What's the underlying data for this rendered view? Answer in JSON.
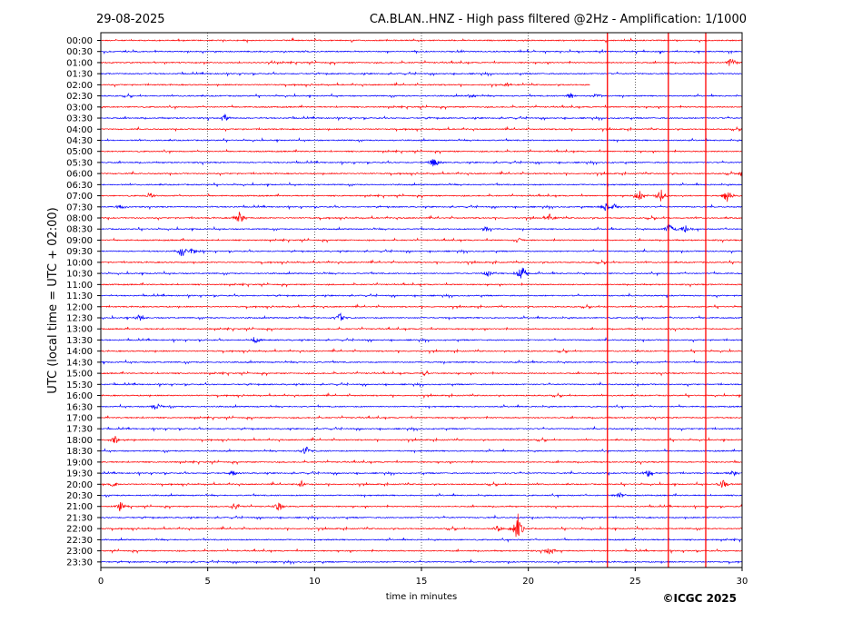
{
  "header": {
    "date": "29-08-2025",
    "title": "CA.BLAN..HNZ - High pass filtered @2Hz - Amplification: 1/1000"
  },
  "credit": "©ICGC 2025",
  "chart_data": {
    "type": "line",
    "title": "CA.BLAN..HNZ - High pass filtered @2Hz - Amplification: 1/1000",
    "xlabel": "time in minutes",
    "ylabel": "UTC (local time = UTC + 02:00)",
    "xlim": [
      0,
      30
    ],
    "xticks": [
      0,
      5,
      10,
      15,
      20,
      25,
      30
    ],
    "grid": "vertical dotted at each 5 minutes",
    "row_labels": [
      "00:00",
      "00:30",
      "01:00",
      "01:30",
      "02:00",
      "02:30",
      "03:00",
      "03:30",
      "04:00",
      "04:30",
      "05:00",
      "05:30",
      "06:00",
      "06:30",
      "07:00",
      "07:30",
      "08:00",
      "08:30",
      "09:00",
      "09:30",
      "10:00",
      "10:30",
      "11:00",
      "11:30",
      "12:00",
      "12:30",
      "13:00",
      "13:30",
      "14:00",
      "14:30",
      "15:00",
      "15:30",
      "16:00",
      "16:30",
      "17:00",
      "17:30",
      "18:00",
      "18:30",
      "19:00",
      "19:30",
      "20:00",
      "20:30",
      "21:00",
      "21:30",
      "22:00",
      "22:30",
      "23:00",
      "23:30"
    ],
    "series_colors": [
      "#ff0000",
      "#0000ff"
    ],
    "data_end": {
      "row": "02:00",
      "minute": 22.9
    },
    "vertical_spikes_minutes": [
      23.7,
      26.55,
      28.3
    ],
    "events": [
      {
        "row": "01:00",
        "minute": 29.5,
        "amp": 6
      },
      {
        "row": "02:00",
        "minute": 19.0,
        "amp": 3
      },
      {
        "row": "02:30",
        "minute": 17.3,
        "amp": 3
      },
      {
        "row": "02:30",
        "minute": 22.0,
        "amp": 4
      },
      {
        "row": "02:30",
        "minute": 23.2,
        "amp": 4
      },
      {
        "row": "03:30",
        "minute": 5.8,
        "amp": 4
      },
      {
        "row": "05:30",
        "minute": 15.6,
        "amp": 8
      },
      {
        "row": "06:00",
        "minute": 30.0,
        "amp": 6
      },
      {
        "row": "07:00",
        "minute": 2.3,
        "amp": 4
      },
      {
        "row": "07:00",
        "minute": 25.2,
        "amp": 6
      },
      {
        "row": "07:00",
        "minute": 26.2,
        "amp": 8
      },
      {
        "row": "07:00",
        "minute": 29.3,
        "amp": 8
      },
      {
        "row": "07:30",
        "minute": 0.9,
        "amp": 4
      },
      {
        "row": "07:30",
        "minute": 23.6,
        "amp": 6
      },
      {
        "row": "07:30",
        "minute": 24.1,
        "amp": 5
      },
      {
        "row": "08:00",
        "minute": 6.5,
        "amp": 9
      },
      {
        "row": "08:00",
        "minute": 21.0,
        "amp": 5
      },
      {
        "row": "08:30",
        "minute": 18.0,
        "amp": 4
      },
      {
        "row": "08:30",
        "minute": 26.6,
        "amp": 8
      },
      {
        "row": "08:30",
        "minute": 27.3,
        "amp": 6
      },
      {
        "row": "09:00",
        "minute": 19.5,
        "amp": 4
      },
      {
        "row": "09:30",
        "minute": 3.8,
        "amp": 7
      },
      {
        "row": "09:30",
        "minute": 4.3,
        "amp": 5
      },
      {
        "row": "10:30",
        "minute": 19.7,
        "amp": 12
      },
      {
        "row": "10:30",
        "minute": 18.1,
        "amp": 4
      },
      {
        "row": "12:30",
        "minute": 11.2,
        "amp": 6
      },
      {
        "row": "12:30",
        "minute": 1.8,
        "amp": 4
      },
      {
        "row": "13:30",
        "minute": 7.2,
        "amp": 5
      },
      {
        "row": "15:00",
        "minute": 15.2,
        "amp": 4
      },
      {
        "row": "16:30",
        "minute": 2.6,
        "amp": 5
      },
      {
        "row": "18:00",
        "minute": 0.7,
        "amp": 5
      },
      {
        "row": "18:30",
        "minute": 9.6,
        "amp": 6
      },
      {
        "row": "19:30",
        "minute": 6.2,
        "amp": 4
      },
      {
        "row": "19:30",
        "minute": 25.6,
        "amp": 5
      },
      {
        "row": "19:30",
        "minute": 29.6,
        "amp": 4
      },
      {
        "row": "20:00",
        "minute": 0.6,
        "amp": 4
      },
      {
        "row": "20:00",
        "minute": 9.4,
        "amp": 4
      },
      {
        "row": "20:00",
        "minute": 29.1,
        "amp": 6
      },
      {
        "row": "20:30",
        "minute": 24.3,
        "amp": 4
      },
      {
        "row": "21:00",
        "minute": 0.9,
        "amp": 5
      },
      {
        "row": "21:00",
        "minute": 6.3,
        "amp": 5
      },
      {
        "row": "21:00",
        "minute": 8.3,
        "amp": 6
      },
      {
        "row": "22:00",
        "minute": 19.5,
        "amp": 16
      },
      {
        "row": "22:00",
        "minute": 18.6,
        "amp": 4
      },
      {
        "row": "23:00",
        "minute": 21.0,
        "amp": 5
      }
    ]
  }
}
